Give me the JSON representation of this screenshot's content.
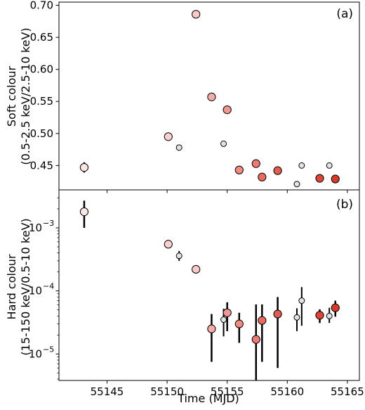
{
  "chart_data": [
    {
      "type": "scatter",
      "panel_label": "(a)",
      "ylabel_line1": "Soft colour",
      "ylabel_line2": "(0.5-2.5 keV/2.5-10 keV)",
      "xlim": [
        55141,
        55166
      ],
      "ylim": [
        0.412,
        0.705
      ],
      "yscale": "linear",
      "yticks": [
        {
          "value": 0.45,
          "label": "0.45"
        },
        {
          "value": 0.5,
          "label": "0.50"
        },
        {
          "value": 0.55,
          "label": "0.55"
        },
        {
          "value": 0.6,
          "label": "0.60"
        },
        {
          "value": 0.65,
          "label": "0.65"
        },
        {
          "value": 0.7,
          "label": "0.70"
        }
      ],
      "points": [
        {
          "x": 55143.1,
          "y": 0.447,
          "yerr": 0.008,
          "size": "large",
          "color": "#fde5e3"
        },
        {
          "x": 55150.1,
          "y": 0.495,
          "yerr": 0.003,
          "size": "large",
          "color": "#fbd0cd"
        },
        {
          "x": 55151.0,
          "y": 0.478,
          "yerr": 0.002,
          "size": "small",
          "color": "#dce6e0"
        },
        {
          "x": 55152.4,
          "y": 0.686,
          "yerr": 0.003,
          "size": "large",
          "color": "#fbc9c6"
        },
        {
          "x": 55153.7,
          "y": 0.557,
          "yerr": 0.003,
          "size": "large",
          "color": "#f7aca6"
        },
        {
          "x": 55154.7,
          "y": 0.484,
          "yerr": 0.002,
          "size": "small",
          "color": "#dce6e0"
        },
        {
          "x": 55155.0,
          "y": 0.537,
          "yerr": 0.003,
          "size": "large",
          "color": "#f39891"
        },
        {
          "x": 55156.0,
          "y": 0.443,
          "yerr": 0.002,
          "size": "large",
          "color": "#f28a82"
        },
        {
          "x": 55157.4,
          "y": 0.453,
          "yerr": 0.002,
          "size": "large",
          "color": "#ef7a72"
        },
        {
          "x": 55157.9,
          "y": 0.432,
          "yerr": 0.002,
          "size": "large",
          "color": "#ea6a61"
        },
        {
          "x": 55159.2,
          "y": 0.442,
          "yerr": 0.002,
          "size": "large",
          "color": "#e65a50"
        },
        {
          "x": 55160.8,
          "y": 0.421,
          "yerr": 0.002,
          "size": "small",
          "color": "#dce6e0"
        },
        {
          "x": 55161.2,
          "y": 0.45,
          "yerr": 0.002,
          "size": "small",
          "color": "#dce6e0"
        },
        {
          "x": 55162.7,
          "y": 0.43,
          "yerr": 0.002,
          "size": "large",
          "color": "#df4535"
        },
        {
          "x": 55163.5,
          "y": 0.45,
          "yerr": 0.002,
          "size": "small",
          "color": "#dce6e0"
        },
        {
          "x": 55164.0,
          "y": 0.429,
          "yerr": 0.002,
          "size": "large",
          "color": "#d93a27"
        }
      ]
    },
    {
      "type": "scatter",
      "panel_label": "(b)",
      "ylabel_line1": "Hard colour",
      "ylabel_line2": "(15-150 keV/0.5-10 keV)",
      "xlabel": "Time (MJD)",
      "xlim": [
        55141,
        55166
      ],
      "ylim": [
        3.8e-06,
        0.004
      ],
      "yscale": "log",
      "yticks": [
        {
          "value": 1e-05,
          "base": "10",
          "exp": "−5"
        },
        {
          "value": 0.0001,
          "base": "10",
          "exp": "−4"
        },
        {
          "value": 0.001,
          "base": "10",
          "exp": "−3"
        }
      ],
      "xticks": [
        {
          "value": 55145,
          "label": "55145"
        },
        {
          "value": 55150,
          "label": "55150"
        },
        {
          "value": 55155,
          "label": "55155"
        },
        {
          "value": 55160,
          "label": "55160"
        },
        {
          "value": 55165,
          "label": "55165"
        }
      ],
      "points": [
        {
          "x": 55143.1,
          "y": 0.0018,
          "ylo": 0.001,
          "yhi": 0.0027,
          "size": "large",
          "color": "#fde5e3"
        },
        {
          "x": 55150.1,
          "y": 0.00055,
          "ylo": 0.00048,
          "yhi": 0.00063,
          "size": "large",
          "color": "#fbd0cd"
        },
        {
          "x": 55151.0,
          "y": 0.00036,
          "ylo": 0.0003,
          "yhi": 0.00043,
          "size": "small",
          "color": "#dce6e0"
        },
        {
          "x": 55152.4,
          "y": 0.00022,
          "ylo": 0.00019,
          "yhi": 0.00025,
          "size": "large",
          "color": "#fbc9c6"
        },
        {
          "x": 55153.7,
          "y": 2.5e-05,
          "ylo": 7.5e-06,
          "yhi": 4.3e-05,
          "size": "large",
          "color": "#f7aca6"
        },
        {
          "x": 55154.7,
          "y": 3.5e-05,
          "ylo": 1.9e-05,
          "yhi": 5.2e-05,
          "size": "small",
          "color": "#dce6e0"
        },
        {
          "x": 55155.0,
          "y": 4.5e-05,
          "ylo": 2.3e-05,
          "yhi": 6.6e-05,
          "size": "large",
          "color": "#f39891"
        },
        {
          "x": 55156.0,
          "y": 3e-05,
          "ylo": 1.5e-05,
          "yhi": 4.5e-05,
          "size": "large",
          "color": "#f28a82"
        },
        {
          "x": 55157.4,
          "y": 1.7e-05,
          "ylo": 3.8e-06,
          "yhi": 6.1e-05,
          "size": "large",
          "color": "#ef7a72"
        },
        {
          "x": 55157.9,
          "y": 3.4e-05,
          "ylo": 7.5e-06,
          "yhi": 6.1e-05,
          "size": "large",
          "color": "#ea6a61"
        },
        {
          "x": 55159.2,
          "y": 4.3e-05,
          "ylo": 6e-06,
          "yhi": 8e-05,
          "size": "large",
          "color": "#e65a50"
        },
        {
          "x": 55160.8,
          "y": 3.8e-05,
          "ylo": 2.3e-05,
          "yhi": 5.3e-05,
          "size": "small",
          "color": "#dce6e0"
        },
        {
          "x": 55161.2,
          "y": 7e-05,
          "ylo": 2.8e-05,
          "yhi": 0.000115,
          "size": "small",
          "color": "#dce6e0"
        },
        {
          "x": 55162.7,
          "y": 4.1e-05,
          "ylo": 3.1e-05,
          "yhi": 5.1e-05,
          "size": "large",
          "color": "#df4535"
        },
        {
          "x": 55163.5,
          "y": 4e-05,
          "ylo": 3.1e-05,
          "yhi": 5.4e-05,
          "size": "small",
          "color": "#dce6e0"
        },
        {
          "x": 55164.0,
          "y": 5.4e-05,
          "ylo": 3.9e-05,
          "yhi": 7e-05,
          "size": "large",
          "color": "#d93a27"
        }
      ]
    }
  ]
}
